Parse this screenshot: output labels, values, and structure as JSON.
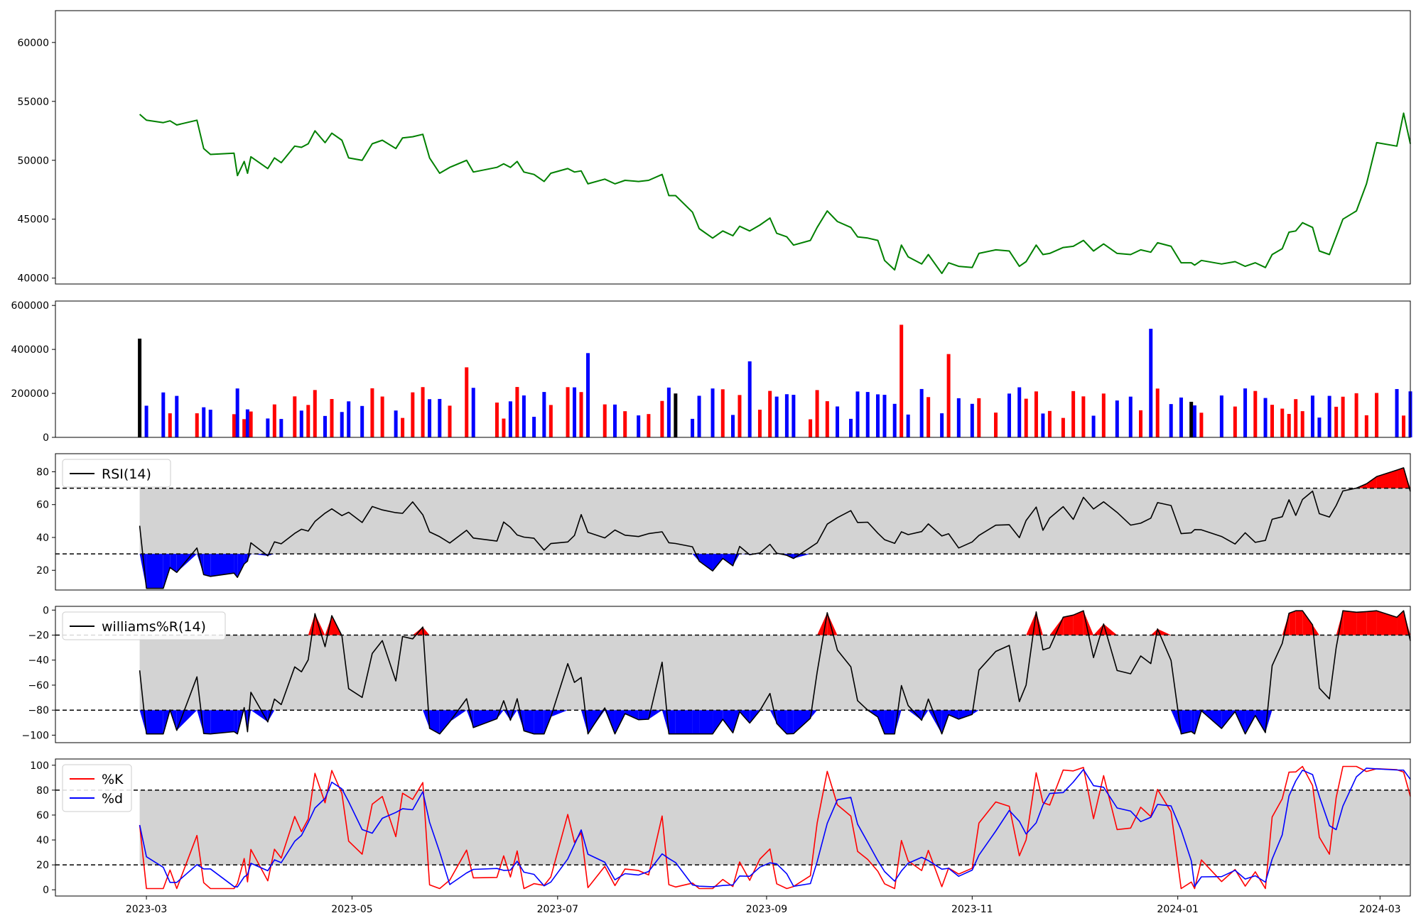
{
  "chart_data": [
    {
      "type": "line",
      "panel": "price",
      "title": "",
      "xlabel": "",
      "ylabel": "",
      "ylim": [
        39500,
        62700
      ],
      "yticks": [
        40000,
        45000,
        50000,
        55000,
        60000
      ],
      "ytick_labels": [
        "40000",
        "45000",
        "50000",
        "55000",
        "60000"
      ],
      "x_range": [
        "2023-02-02",
        "2024-03-10"
      ],
      "grid": false,
      "colors": {
        "line": "#008000"
      },
      "series": [
        {
          "values": [
            [
              "2023-02-27",
              53900
            ],
            [
              "2023-03-01",
              53400
            ],
            [
              "2023-03-06",
              53200
            ],
            [
              "2023-03-08",
              53350
            ],
            [
              "2023-03-10",
              53000
            ],
            [
              "2023-03-16",
              53400
            ],
            [
              "2023-03-18",
              51000
            ],
            [
              "2023-03-20",
              50500
            ],
            [
              "2023-03-27",
              50600
            ],
            [
              "2023-03-28",
              48700
            ],
            [
              "2023-03-30",
              49900
            ],
            [
              "2023-03-31",
              48900
            ],
            [
              "2023-04-01",
              50300
            ],
            [
              "2023-04-06",
              49300
            ],
            [
              "2023-04-08",
              50200
            ],
            [
              "2023-04-10",
              49800
            ],
            [
              "2023-04-14",
              51200
            ],
            [
              "2023-04-16",
              51100
            ],
            [
              "2023-04-18",
              51400
            ],
            [
              "2023-04-20",
              52500
            ],
            [
              "2023-04-23",
              51500
            ],
            [
              "2023-04-25",
              52300
            ],
            [
              "2023-04-28",
              51700
            ],
            [
              "2023-04-30",
              50200
            ],
            [
              "2023-05-04",
              50000
            ],
            [
              "2023-05-07",
              51400
            ],
            [
              "2023-05-10",
              51700
            ],
            [
              "2023-05-14",
              51000
            ],
            [
              "2023-05-16",
              51900
            ],
            [
              "2023-05-19",
              52000
            ],
            [
              "2023-05-22",
              52200
            ],
            [
              "2023-05-24",
              50200
            ],
            [
              "2023-05-27",
              48900
            ],
            [
              "2023-05-30",
              49400
            ],
            [
              "2023-06-04",
              50000
            ],
            [
              "2023-06-06",
              49000
            ],
            [
              "2023-06-13",
              49400
            ],
            [
              "2023-06-15",
              49700
            ],
            [
              "2023-06-17",
              49400
            ],
            [
              "2023-06-19",
              49900
            ],
            [
              "2023-06-21",
              49000
            ],
            [
              "2023-06-24",
              48800
            ],
            [
              "2023-06-27",
              48200
            ],
            [
              "2023-06-29",
              48900
            ],
            [
              "2023-07-04",
              49300
            ],
            [
              "2023-07-06",
              49000
            ],
            [
              "2023-07-08",
              49100
            ],
            [
              "2023-07-10",
              48000
            ],
            [
              "2023-07-15",
              48400
            ],
            [
              "2023-07-18",
              48000
            ],
            [
              "2023-07-21",
              48300
            ],
            [
              "2023-07-25",
              48200
            ],
            [
              "2023-07-28",
              48300
            ],
            [
              "2023-08-01",
              48800
            ],
            [
              "2023-08-03",
              47000
            ],
            [
              "2023-08-05",
              47000
            ],
            [
              "2023-08-10",
              45600
            ],
            [
              "2023-08-12",
              44200
            ],
            [
              "2023-08-16",
              43400
            ],
            [
              "2023-08-19",
              44000
            ],
            [
              "2023-08-22",
              43600
            ],
            [
              "2023-08-24",
              44400
            ],
            [
              "2023-08-27",
              44000
            ],
            [
              "2023-08-30",
              44500
            ],
            [
              "2023-09-02",
              45100
            ],
            [
              "2023-09-04",
              43800
            ],
            [
              "2023-09-07",
              43500
            ],
            [
              "2023-09-09",
              42800
            ],
            [
              "2023-09-14",
              43200
            ],
            [
              "2023-09-16",
              44300
            ],
            [
              "2023-09-19",
              45700
            ],
            [
              "2023-09-22",
              44800
            ],
            [
              "2023-09-26",
              44300
            ],
            [
              "2023-09-28",
              43500
            ],
            [
              "2023-10-01",
              43400
            ],
            [
              "2023-10-04",
              43200
            ],
            [
              "2023-10-06",
              41500
            ],
            [
              "2023-10-09",
              40700
            ],
            [
              "2023-10-11",
              42800
            ],
            [
              "2023-10-13",
              41800
            ],
            [
              "2023-10-17",
              41200
            ],
            [
              "2023-10-19",
              42000
            ],
            [
              "2023-10-23",
              40400
            ],
            [
              "2023-10-25",
              41300
            ],
            [
              "2023-10-28",
              41000
            ],
            [
              "2023-11-01",
              40900
            ],
            [
              "2023-11-03",
              42100
            ],
            [
              "2023-11-08",
              42400
            ],
            [
              "2023-11-12",
              42300
            ],
            [
              "2023-11-15",
              41000
            ],
            [
              "2023-11-17",
              41400
            ],
            [
              "2023-11-20",
              42800
            ],
            [
              "2023-11-22",
              42000
            ],
            [
              "2023-11-24",
              42100
            ],
            [
              "2023-11-28",
              42600
            ],
            [
              "2023-12-01",
              42700
            ],
            [
              "2023-12-04",
              43200
            ],
            [
              "2023-12-07",
              42300
            ],
            [
              "2023-12-10",
              42900
            ],
            [
              "2023-12-14",
              42100
            ],
            [
              "2023-12-18",
              42000
            ],
            [
              "2023-12-21",
              42400
            ],
            [
              "2023-12-24",
              42200
            ],
            [
              "2023-12-26",
              43000
            ],
            [
              "2023-12-30",
              42700
            ],
            [
              "2024-01-02",
              41300
            ],
            [
              "2024-01-05",
              41300
            ],
            [
              "2024-01-06",
              41100
            ],
            [
              "2024-01-08",
              41500
            ],
            [
              "2024-01-14",
              41200
            ],
            [
              "2024-01-18",
              41400
            ],
            [
              "2024-01-21",
              41000
            ],
            [
              "2024-01-24",
              41300
            ],
            [
              "2024-01-27",
              40900
            ],
            [
              "2024-01-29",
              42000
            ],
            [
              "2024-02-01",
              42500
            ],
            [
              "2024-02-03",
              43900
            ],
            [
              "2024-02-05",
              44000
            ],
            [
              "2024-02-07",
              44700
            ],
            [
              "2024-02-10",
              44300
            ],
            [
              "2024-02-12",
              42300
            ],
            [
              "2024-02-15",
              42000
            ],
            [
              "2024-02-17",
              43500
            ],
            [
              "2024-02-19",
              45000
            ],
            [
              "2024-02-23",
              45700
            ],
            [
              "2024-02-26",
              48000
            ],
            [
              "2024-02-29",
              51500
            ],
            [
              "2024-03-06",
              51200
            ],
            [
              "2024-03-08",
              54000
            ],
            [
              "2024-03-10",
              51400
            ]
          ]
        }
      ]
    },
    {
      "type": "bar",
      "panel": "volume",
      "title": "",
      "xlabel": "",
      "ylabel": "",
      "ylim": [
        0,
        620000
      ],
      "yticks": [
        0,
        200000,
        400000,
        600000
      ],
      "ytick_labels": [
        "0",
        "200000",
        "400000",
        "600000"
      ],
      "x_range": [
        "2023-02-02",
        "2024-03-10"
      ],
      "grid": false,
      "colors": {
        "up": "#ff0000",
        "down": "#0000ff",
        "flat": "#000000"
      }
    },
    {
      "type": "line",
      "panel": "rsi",
      "title": "",
      "legend": {
        "position": "top-left",
        "entries": [
          "RSI(14)"
        ]
      },
      "ylim": [
        8,
        91
      ],
      "yticks": [
        20,
        40,
        60,
        80
      ],
      "ytick_labels": [
        "20",
        "40",
        "60",
        "80"
      ],
      "x_range": [
        "2023-02-02",
        "2024-03-10"
      ],
      "thresholds": [
        30,
        70
      ],
      "grid": false,
      "colors": {
        "line": "#000000",
        "band": "#d3d3d3",
        "overbought": "#ff0000",
        "oversold": "#0000ff"
      },
      "series": [
        {
          "name": "RSI(14)"
        }
      ]
    },
    {
      "type": "line",
      "panel": "williams",
      "title": "",
      "legend": {
        "position": "top-left",
        "entries": [
          "williams%R(14)"
        ]
      },
      "ylim": [
        -106,
        3
      ],
      "yticks": [
        -100,
        -80,
        -60,
        -40,
        -20,
        0
      ],
      "ytick_labels": [
        "−100",
        "−80",
        "−60",
        "−40",
        "−20",
        "0"
      ],
      "x_range": [
        "2023-02-02",
        "2024-03-10"
      ],
      "thresholds": [
        -80,
        -20
      ],
      "grid": false,
      "colors": {
        "line": "#000000",
        "band": "#d3d3d3",
        "overbought": "#ff0000",
        "oversold": "#0000ff"
      },
      "series": [
        {
          "name": "williams%R(14)"
        }
      ]
    },
    {
      "type": "line",
      "panel": "stochastic",
      "title": "",
      "legend": {
        "position": "top-left",
        "entries": [
          "%K",
          "%d"
        ]
      },
      "ylim": [
        -5,
        105
      ],
      "yticks": [
        0,
        20,
        40,
        60,
        80,
        100
      ],
      "ytick_labels": [
        "0",
        "20",
        "40",
        "60",
        "80",
        "100"
      ],
      "x_range": [
        "2023-02-02",
        "2024-03-10"
      ],
      "thresholds": [
        20,
        80
      ],
      "grid": false,
      "colors": {
        "k": "#ff0000",
        "d": "#0000ff",
        "band": "#d3d3d3"
      },
      "series": [
        {
          "name": "%K"
        },
        {
          "name": "%d"
        }
      ]
    }
  ],
  "x_axis": {
    "ticks": [
      "2023-03-01",
      "2023-05-01",
      "2023-07-01",
      "2023-09-01",
      "2023-11-01",
      "2024-01-01",
      "2024-03-01"
    ],
    "tick_labels": [
      "2023-03",
      "2023-05",
      "2023-07",
      "2023-09",
      "2023-11",
      "2024-01",
      "2024-03"
    ]
  }
}
